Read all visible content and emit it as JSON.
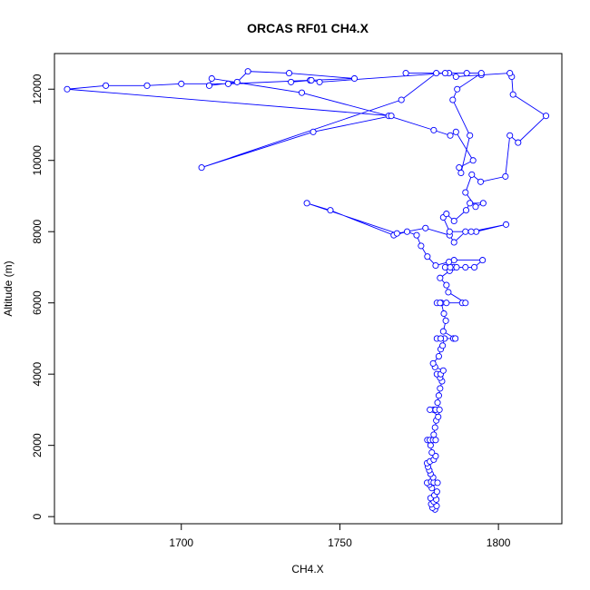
{
  "chart_data": {
    "type": "line",
    "title": "ORCAS RF01 CH4.X",
    "xlabel": "CH4.X",
    "ylabel": "Altitude (m)",
    "xlim": [
      1660,
      1820
    ],
    "ylim": [
      -200,
      13000
    ],
    "xticks": [
      1700,
      1750,
      1800
    ],
    "yticks": [
      0,
      2000,
      4000,
      6000,
      8000,
      10000,
      12000
    ],
    "grid": false,
    "legend": "none",
    "series": [
      {
        "color": "#0000ff",
        "marker": "open-circle",
        "points": [
          [
            1780.0,
            200
          ],
          [
            1779.2,
            250
          ],
          [
            1780.5,
            300
          ],
          [
            1778.8,
            350
          ],
          [
            1779.6,
            420
          ],
          [
            1780.4,
            480
          ],
          [
            1778.6,
            520
          ],
          [
            1779.8,
            600
          ],
          [
            1780.6,
            700
          ],
          [
            1779.0,
            800
          ],
          [
            1778.2,
            900
          ],
          [
            1777.5,
            950
          ],
          [
            1778.8,
            980
          ],
          [
            1779.6,
            960
          ],
          [
            1780.8,
            950
          ],
          [
            1779.4,
            1100
          ],
          [
            1778.6,
            1200
          ],
          [
            1778.2,
            1300
          ],
          [
            1777.8,
            1400
          ],
          [
            1777.5,
            1500
          ],
          [
            1778.4,
            1550
          ],
          [
            1779.6,
            1600
          ],
          [
            1780.2,
            1700
          ],
          [
            1779.0,
            1800
          ],
          [
            1778.6,
            2000
          ],
          [
            1777.6,
            2150
          ],
          [
            1778.4,
            2150
          ],
          [
            1779.4,
            2150
          ],
          [
            1780.2,
            2150
          ],
          [
            1779.6,
            2300
          ],
          [
            1780.0,
            2500
          ],
          [
            1780.4,
            2700
          ],
          [
            1781.0,
            2800
          ],
          [
            1780.6,
            2950
          ],
          [
            1779.6,
            3000
          ],
          [
            1778.4,
            3000
          ],
          [
            1780.2,
            3000
          ],
          [
            1781.4,
            3000
          ],
          [
            1780.8,
            3200
          ],
          [
            1781.2,
            3400
          ],
          [
            1781.6,
            3600
          ],
          [
            1782.2,
            3800
          ],
          [
            1781.6,
            3900
          ],
          [
            1780.6,
            4000
          ],
          [
            1781.8,
            4000
          ],
          [
            1782.6,
            4100
          ],
          [
            1780.0,
            4200
          ],
          [
            1779.4,
            4300
          ],
          [
            1781.2,
            4500
          ],
          [
            1781.8,
            4700
          ],
          [
            1782.4,
            4800
          ],
          [
            1783.0,
            5000
          ],
          [
            1780.6,
            5000
          ],
          [
            1781.8,
            5000
          ],
          [
            1785.8,
            5000
          ],
          [
            1786.4,
            5000
          ],
          [
            1782.6,
            5200
          ],
          [
            1783.4,
            5500
          ],
          [
            1782.8,
            5700
          ],
          [
            1782.0,
            6000
          ],
          [
            1780.6,
            6000
          ],
          [
            1781.6,
            6000
          ],
          [
            1783.6,
            6000
          ],
          [
            1788.6,
            6000
          ],
          [
            1789.6,
            6000
          ],
          [
            1784.2,
            6300
          ],
          [
            1783.6,
            6500
          ],
          [
            1781.6,
            6700
          ],
          [
            1784.6,
            6900
          ],
          [
            1785.8,
            7000
          ],
          [
            1783.2,
            7000
          ],
          [
            1784.8,
            7000
          ],
          [
            1786.8,
            7000
          ],
          [
            1789.6,
            7000
          ],
          [
            1792.4,
            7000
          ],
          [
            1795.0,
            7200
          ],
          [
            1786.0,
            7200
          ],
          [
            1784.4,
            7150
          ],
          [
            1780.2,
            7050
          ],
          [
            1777.6,
            7300
          ],
          [
            1775.6,
            7600
          ],
          [
            1774.2,
            7900
          ],
          [
            1771.2,
            8000
          ],
          [
            1767.0,
            7900
          ],
          [
            1747.0,
            8600
          ],
          [
            1739.6,
            8800
          ],
          [
            1768.0,
            7950
          ],
          [
            1777.0,
            8100
          ],
          [
            1784.6,
            7900
          ],
          [
            1786.0,
            7700
          ],
          [
            1789.6,
            8000
          ],
          [
            1793.0,
            8000
          ],
          [
            1802.4,
            8200
          ],
          [
            1791.4,
            8000
          ],
          [
            1784.6,
            8000
          ],
          [
            1782.6,
            8400
          ],
          [
            1783.6,
            8500
          ],
          [
            1786.0,
            8300
          ],
          [
            1789.8,
            8600
          ],
          [
            1791.0,
            8800
          ],
          [
            1795.2,
            8800
          ],
          [
            1792.8,
            8700
          ],
          [
            1789.6,
            9100
          ],
          [
            1791.6,
            9600
          ],
          [
            1794.4,
            9400
          ],
          [
            1802.2,
            9550
          ],
          [
            1803.6,
            10700
          ],
          [
            1806.2,
            10500
          ],
          [
            1815.0,
            11250
          ],
          [
            1804.6,
            11850
          ],
          [
            1804.2,
            12350
          ],
          [
            1803.6,
            12450
          ],
          [
            1794.6,
            12400
          ],
          [
            1786.6,
            12350
          ],
          [
            1784.4,
            12450
          ],
          [
            1790.0,
            12450
          ],
          [
            1794.6,
            12450
          ],
          [
            1787.0,
            12000
          ],
          [
            1785.6,
            11700
          ],
          [
            1791.0,
            10700
          ],
          [
            1788.2,
            9650
          ],
          [
            1787.6,
            9800
          ],
          [
            1792.0,
            10000
          ],
          [
            1786.6,
            10800
          ],
          [
            1784.8,
            10700
          ],
          [
            1779.6,
            10850
          ],
          [
            1765.4,
            11250
          ],
          [
            1738.0,
            11900
          ],
          [
            1709.6,
            12300
          ],
          [
            1708.8,
            12100
          ],
          [
            1717.6,
            12200
          ],
          [
            1721.0,
            12500
          ],
          [
            1734.0,
            12450
          ],
          [
            1754.6,
            12300
          ],
          [
            1740.6,
            12250
          ],
          [
            1714.8,
            12150
          ],
          [
            1700.0,
            12150
          ],
          [
            1689.2,
            12100
          ],
          [
            1676.2,
            12100
          ],
          [
            1664.0,
            12000
          ],
          [
            1766.2,
            11250
          ],
          [
            1741.6,
            10800
          ],
          [
            1706.4,
            9800
          ],
          [
            1769.4,
            11700
          ],
          [
            1780.4,
            12450
          ],
          [
            1770.8,
            12450
          ],
          [
            1783.2,
            12450
          ],
          [
            1743.6,
            12200
          ],
          [
            1741.0,
            12250
          ],
          [
            1734.6,
            12200
          ]
        ]
      }
    ]
  }
}
